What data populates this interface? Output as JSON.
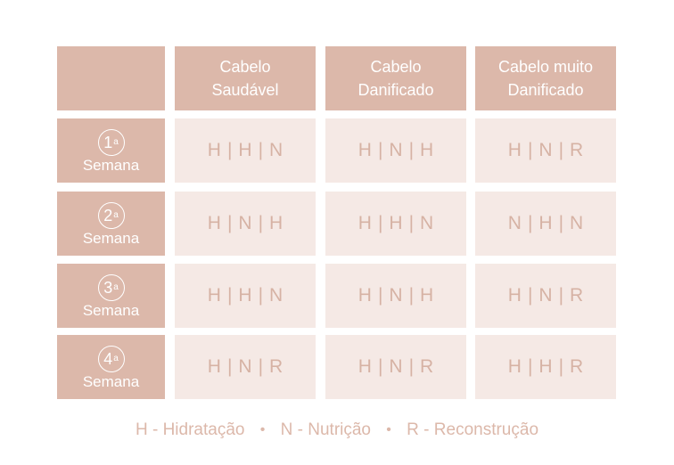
{
  "columns": [
    "Cabelo\nSaudável",
    "Cabelo\nDanificado",
    "Cabelo muito\nDanificado"
  ],
  "rows": [
    {
      "num": "1",
      "sup": "a",
      "label": "Semana",
      "cells": [
        "H|H|N",
        "H|N|H",
        "H|N|R"
      ]
    },
    {
      "num": "2",
      "sup": "a",
      "label": "Semana",
      "cells": [
        "H|N|H",
        "H|H|N",
        "N|H|N"
      ]
    },
    {
      "num": "3",
      "sup": "a",
      "label": "Semana",
      "cells": [
        "H|H|N",
        "H|N|H",
        "H|N|R"
      ]
    },
    {
      "num": "4",
      "sup": "a",
      "label": "Semana",
      "cells": [
        "H|N|R",
        "H|N|R",
        "H|H|R"
      ]
    }
  ],
  "legend": {
    "hidratacao": "H - Hidratação",
    "nutricao": "N - Nutrição",
    "reconstrucao": "R - Reconstrução",
    "separator": "•"
  },
  "colors": {
    "header_bg": "#dcb8aa",
    "cell_bg": "#f5e9e5",
    "cell_text": "#d6b2a4",
    "header_text": "#ffffff"
  }
}
